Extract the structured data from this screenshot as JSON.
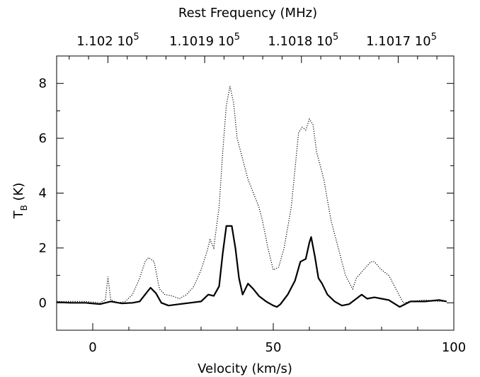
{
  "chart_data": {
    "type": "line",
    "xlabel": "Velocity (km/s)",
    "ylabel_main": "T",
    "ylabel_sub": "B",
    "ylabel_rest": " (K)",
    "top_axis_label": "Rest Frequency (MHz)",
    "xlim": [
      -10,
      100
    ],
    "ylim": [
      -1,
      9
    ],
    "x_ticks": [
      0,
      50,
      100
    ],
    "y_ticks": [
      0,
      2,
      4,
      6,
      8
    ],
    "top_ticks": [
      {
        "mantissa": "1.102",
        "exp": "5",
        "velocity": 4.2
      },
      {
        "mantissa": "1.1019",
        "exp": "5",
        "velocity": 31.0
      },
      {
        "mantissa": "1.1018",
        "exp": "5",
        "velocity": 58.3
      },
      {
        "mantissa": "1.1017",
        "exp": "5",
        "velocity": 85.5
      }
    ],
    "grid": false,
    "series": [
      {
        "style": "solid",
        "points": [
          [
            -10,
            0.02
          ],
          [
            -6,
            0.0
          ],
          [
            -2,
            0.0
          ],
          [
            2,
            -0.05
          ],
          [
            5,
            0.05
          ],
          [
            8,
            -0.02
          ],
          [
            11,
            0.0
          ],
          [
            13,
            0.05
          ],
          [
            14.5,
            0.3
          ],
          [
            16,
            0.55
          ],
          [
            17.5,
            0.35
          ],
          [
            19,
            0.0
          ],
          [
            21,
            -0.1
          ],
          [
            24,
            -0.05
          ],
          [
            27,
            0.0
          ],
          [
            30,
            0.05
          ],
          [
            32,
            0.3
          ],
          [
            33.5,
            0.25
          ],
          [
            35,
            0.6
          ],
          [
            36,
            1.8
          ],
          [
            37,
            2.8
          ],
          [
            38.5,
            2.8
          ],
          [
            39.5,
            2.0
          ],
          [
            40.5,
            0.9
          ],
          [
            41.5,
            0.3
          ],
          [
            43,
            0.7
          ],
          [
            44.5,
            0.5
          ],
          [
            46,
            0.25
          ],
          [
            48,
            0.05
          ],
          [
            50,
            -0.1
          ],
          [
            51,
            -0.15
          ],
          [
            52,
            -0.05
          ],
          [
            54,
            0.3
          ],
          [
            56,
            0.8
          ],
          [
            57.5,
            1.5
          ],
          [
            59,
            1.6
          ],
          [
            60,
            2.2
          ],
          [
            60.5,
            2.4
          ],
          [
            61.5,
            1.7
          ],
          [
            62.5,
            0.9
          ],
          [
            63.5,
            0.7
          ],
          [
            65,
            0.3
          ],
          [
            67,
            0.05
          ],
          [
            69,
            -0.1
          ],
          [
            71,
            -0.05
          ],
          [
            73,
            0.15
          ],
          [
            74.5,
            0.3
          ],
          [
            76,
            0.15
          ],
          [
            78,
            0.2
          ],
          [
            80,
            0.15
          ],
          [
            82,
            0.1
          ],
          [
            85,
            -0.15
          ],
          [
            88,
            0.05
          ],
          [
            92,
            0.05
          ],
          [
            96,
            0.1
          ],
          [
            98,
            0.05
          ]
        ]
      },
      {
        "style": "dotted",
        "points": [
          [
            -10,
            0.05
          ],
          [
            -2,
            0.05
          ],
          [
            2,
            0.0
          ],
          [
            3.5,
            0.1
          ],
          [
            4.2,
            0.95
          ],
          [
            5.0,
            0.1
          ],
          [
            7,
            0.0
          ],
          [
            9,
            0.05
          ],
          [
            11,
            0.3
          ],
          [
            13,
            0.9
          ],
          [
            14.5,
            1.5
          ],
          [
            15.5,
            1.65
          ],
          [
            17,
            1.5
          ],
          [
            18.5,
            0.5
          ],
          [
            20,
            0.3
          ],
          [
            22,
            0.25
          ],
          [
            24,
            0.15
          ],
          [
            26,
            0.3
          ],
          [
            28,
            0.6
          ],
          [
            30,
            1.2
          ],
          [
            31.5,
            1.8
          ],
          [
            32.5,
            2.3
          ],
          [
            33.5,
            2.0
          ],
          [
            35,
            3.5
          ],
          [
            36,
            5.5
          ],
          [
            37,
            7.2
          ],
          [
            38,
            7.9
          ],
          [
            39,
            7.3
          ],
          [
            40,
            6.0
          ],
          [
            42,
            5.0
          ],
          [
            43,
            4.5
          ],
          [
            44.5,
            4.0
          ],
          [
            46,
            3.5
          ],
          [
            47,
            3.0
          ],
          [
            48.5,
            2.0
          ],
          [
            50,
            1.2
          ],
          [
            51.5,
            1.3
          ],
          [
            53,
            2.0
          ],
          [
            55,
            3.5
          ],
          [
            57,
            6.2
          ],
          [
            58,
            6.4
          ],
          [
            59,
            6.3
          ],
          [
            60,
            6.7
          ],
          [
            61,
            6.5
          ],
          [
            62,
            5.5
          ],
          [
            64,
            4.5
          ],
          [
            66,
            3.0
          ],
          [
            68,
            2.0
          ],
          [
            70,
            1.0
          ],
          [
            72,
            0.5
          ],
          [
            73,
            0.9
          ],
          [
            75,
            1.2
          ],
          [
            77,
            1.5
          ],
          [
            78,
            1.5
          ],
          [
            80,
            1.2
          ],
          [
            82,
            1.0
          ],
          [
            84,
            0.5
          ],
          [
            86,
            0.0
          ],
          [
            88,
            0.05
          ],
          [
            92,
            0.1
          ],
          [
            96,
            0.05
          ],
          [
            98,
            0.05
          ]
        ]
      }
    ]
  }
}
